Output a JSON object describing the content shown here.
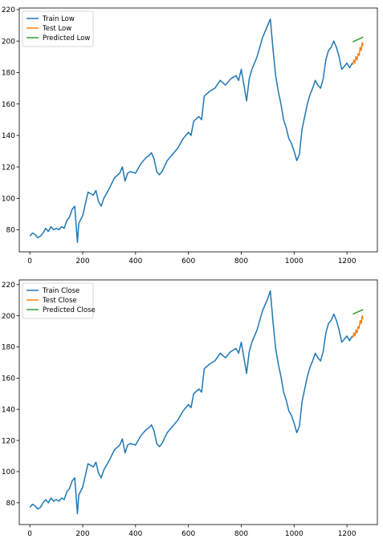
{
  "chart_data": [
    {
      "type": "line",
      "title": "",
      "xlabel": "",
      "ylabel": "",
      "xlim": [
        -40,
        1315
      ],
      "ylim": [
        66,
        221
      ],
      "xticks": [
        0,
        200,
        400,
        600,
        800,
        1000,
        1200
      ],
      "yticks": [
        80,
        100,
        120,
        140,
        160,
        180,
        200,
        220
      ],
      "grid": false,
      "legend_position": "upper left",
      "series": [
        {
          "name": "Train Low",
          "color": "#1f77b4",
          "points": [
            [
              0,
              76
            ],
            [
              10,
              78
            ],
            [
              20,
              77
            ],
            [
              30,
              75
            ],
            [
              40,
              76
            ],
            [
              50,
              78
            ],
            [
              60,
              81
            ],
            [
              70,
              79
            ],
            [
              80,
              82
            ],
            [
              90,
              80
            ],
            [
              100,
              81
            ],
            [
              110,
              80
            ],
            [
              120,
              82
            ],
            [
              130,
              81
            ],
            [
              140,
              86
            ],
            [
              150,
              88
            ],
            [
              160,
              93
            ],
            [
              170,
              95
            ],
            [
              180,
              72
            ],
            [
              185,
              84
            ],
            [
              200,
              89
            ],
            [
              220,
              104
            ],
            [
              240,
              102
            ],
            [
              250,
              105
            ],
            [
              260,
              98
            ],
            [
              270,
              95
            ],
            [
              280,
              100
            ],
            [
              300,
              106
            ],
            [
              320,
              113
            ],
            [
              340,
              116
            ],
            [
              350,
              120
            ],
            [
              360,
              111
            ],
            [
              370,
              116
            ],
            [
              380,
              117
            ],
            [
              400,
              116
            ],
            [
              420,
              122
            ],
            [
              440,
              126
            ],
            [
              450,
              127
            ],
            [
              460,
              129
            ],
            [
              470,
              125
            ],
            [
              480,
              117
            ],
            [
              490,
              115
            ],
            [
              500,
              117
            ],
            [
              520,
              124
            ],
            [
              540,
              128
            ],
            [
              560,
              132
            ],
            [
              580,
              138
            ],
            [
              600,
              142
            ],
            [
              610,
              140
            ],
            [
              620,
              149
            ],
            [
              640,
              152
            ],
            [
              650,
              150
            ],
            [
              660,
              165
            ],
            [
              680,
              168
            ],
            [
              700,
              170
            ],
            [
              720,
              175
            ],
            [
              740,
              172
            ],
            [
              760,
              176
            ],
            [
              780,
              178
            ],
            [
              790,
              175
            ],
            [
              800,
              182
            ],
            [
              810,
              172
            ],
            [
              820,
              162
            ],
            [
              830,
              176
            ],
            [
              840,
              182
            ],
            [
              860,
              190
            ],
            [
              880,
              202
            ],
            [
              900,
              210
            ],
            [
              910,
              214
            ],
            [
              920,
              195
            ],
            [
              930,
              178
            ],
            [
              940,
              168
            ],
            [
              950,
              160
            ],
            [
              960,
              150
            ],
            [
              970,
              145
            ],
            [
              980,
              138
            ],
            [
              990,
              135
            ],
            [
              1000,
              130
            ],
            [
              1010,
              124
            ],
            [
              1020,
              128
            ],
            [
              1030,
              144
            ],
            [
              1040,
              152
            ],
            [
              1050,
              160
            ],
            [
              1060,
              166
            ],
            [
              1070,
              170
            ],
            [
              1080,
              175
            ],
            [
              1090,
              172
            ],
            [
              1100,
              170
            ],
            [
              1110,
              176
            ],
            [
              1120,
              188
            ],
            [
              1130,
              194
            ],
            [
              1140,
              196
            ],
            [
              1150,
              200
            ],
            [
              1160,
              196
            ],
            [
              1170,
              190
            ],
            [
              1180,
              182
            ],
            [
              1190,
              184
            ],
            [
              1200,
              186
            ],
            [
              1210,
              183
            ],
            [
              1220,
              186
            ]
          ]
        },
        {
          "name": "Test Low",
          "color": "#ff7f0e",
          "points": [
            [
              1222,
              185
            ],
            [
              1226,
              188
            ],
            [
              1230,
              186
            ],
            [
              1234,
              190
            ],
            [
              1238,
              188
            ],
            [
              1242,
              192
            ],
            [
              1246,
              191
            ],
            [
              1250,
              196
            ],
            [
              1254,
              194
            ],
            [
              1258,
              199
            ],
            [
              1261,
              197
            ]
          ]
        },
        {
          "name": "Predicted Low",
          "color": "#2ca02c",
          "points": [
            [
              1222,
              199.5
            ],
            [
              1261,
              202.5
            ]
          ]
        }
      ]
    },
    {
      "type": "line",
      "title": "",
      "xlabel": "",
      "ylabel": "",
      "xlim": [
        -40,
        1315
      ],
      "ylim": [
        66,
        223
      ],
      "xticks": [
        0,
        200,
        400,
        600,
        800,
        1000,
        1200
      ],
      "yticks": [
        80,
        100,
        120,
        140,
        160,
        180,
        200,
        220
      ],
      "grid": false,
      "legend_position": "upper left",
      "series": [
        {
          "name": "Train Close",
          "color": "#1f77b4",
          "points": [
            [
              0,
              77
            ],
            [
              10,
              79
            ],
            [
              20,
              78
            ],
            [
              30,
              76
            ],
            [
              40,
              77
            ],
            [
              50,
              80
            ],
            [
              60,
              82
            ],
            [
              70,
              80
            ],
            [
              80,
              83
            ],
            [
              90,
              81
            ],
            [
              100,
              82
            ],
            [
              110,
              81
            ],
            [
              120,
              83
            ],
            [
              130,
              82
            ],
            [
              140,
              87
            ],
            [
              150,
              89
            ],
            [
              160,
              94
            ],
            [
              170,
              96
            ],
            [
              180,
              73
            ],
            [
              185,
              85
            ],
            [
              200,
              90
            ],
            [
              220,
              105
            ],
            [
              240,
              103
            ],
            [
              250,
              106
            ],
            [
              260,
              99
            ],
            [
              270,
              96
            ],
            [
              280,
              101
            ],
            [
              300,
              107
            ],
            [
              320,
              114
            ],
            [
              340,
              117
            ],
            [
              350,
              121
            ],
            [
              360,
              112
            ],
            [
              370,
              117
            ],
            [
              380,
              118
            ],
            [
              400,
              117
            ],
            [
              420,
              123
            ],
            [
              440,
              127
            ],
            [
              450,
              128
            ],
            [
              460,
              130
            ],
            [
              470,
              126
            ],
            [
              480,
              118
            ],
            [
              490,
              116
            ],
            [
              500,
              118
            ],
            [
              520,
              125
            ],
            [
              540,
              129
            ],
            [
              560,
              133
            ],
            [
              580,
              139
            ],
            [
              600,
              143
            ],
            [
              610,
              141
            ],
            [
              620,
              150
            ],
            [
              640,
              153
            ],
            [
              650,
              151
            ],
            [
              660,
              166
            ],
            [
              680,
              169
            ],
            [
              700,
              171
            ],
            [
              720,
              176
            ],
            [
              740,
              173
            ],
            [
              760,
              177
            ],
            [
              780,
              179
            ],
            [
              790,
              176
            ],
            [
              800,
              183
            ],
            [
              810,
              173
            ],
            [
              820,
              163
            ],
            [
              830,
              177
            ],
            [
              840,
              183
            ],
            [
              860,
              191
            ],
            [
              880,
              203
            ],
            [
              900,
              211
            ],
            [
              910,
              216
            ],
            [
              920,
              196
            ],
            [
              930,
              179
            ],
            [
              940,
              169
            ],
            [
              950,
              161
            ],
            [
              960,
              151
            ],
            [
              970,
              146
            ],
            [
              980,
              139
            ],
            [
              990,
              136
            ],
            [
              1000,
              131
            ],
            [
              1010,
              125
            ],
            [
              1020,
              129
            ],
            [
              1030,
              145
            ],
            [
              1040,
              153
            ],
            [
              1050,
              161
            ],
            [
              1060,
              167
            ],
            [
              1070,
              171
            ],
            [
              1080,
              176
            ],
            [
              1090,
              173
            ],
            [
              1100,
              171
            ],
            [
              1110,
              177
            ],
            [
              1120,
              189
            ],
            [
              1130,
              195
            ],
            [
              1140,
              197
            ],
            [
              1150,
              201
            ],
            [
              1160,
              197
            ],
            [
              1170,
              191
            ],
            [
              1180,
              183
            ],
            [
              1190,
              185
            ],
            [
              1200,
              187
            ],
            [
              1210,
              184
            ],
            [
              1220,
              187
            ]
          ]
        },
        {
          "name": "Test Close",
          "color": "#ff7f0e",
          "points": [
            [
              1222,
              186
            ],
            [
              1226,
              189
            ],
            [
              1230,
              187
            ],
            [
              1234,
              191
            ],
            [
              1238,
              189
            ],
            [
              1242,
              193
            ],
            [
              1246,
              192
            ],
            [
              1250,
              197
            ],
            [
              1254,
              195
            ],
            [
              1258,
              200
            ],
            [
              1261,
              198
            ]
          ]
        },
        {
          "name": "Predicted Close",
          "color": "#2ca02c",
          "points": [
            [
              1222,
              201
            ],
            [
              1261,
              204
            ]
          ]
        }
      ]
    }
  ]
}
